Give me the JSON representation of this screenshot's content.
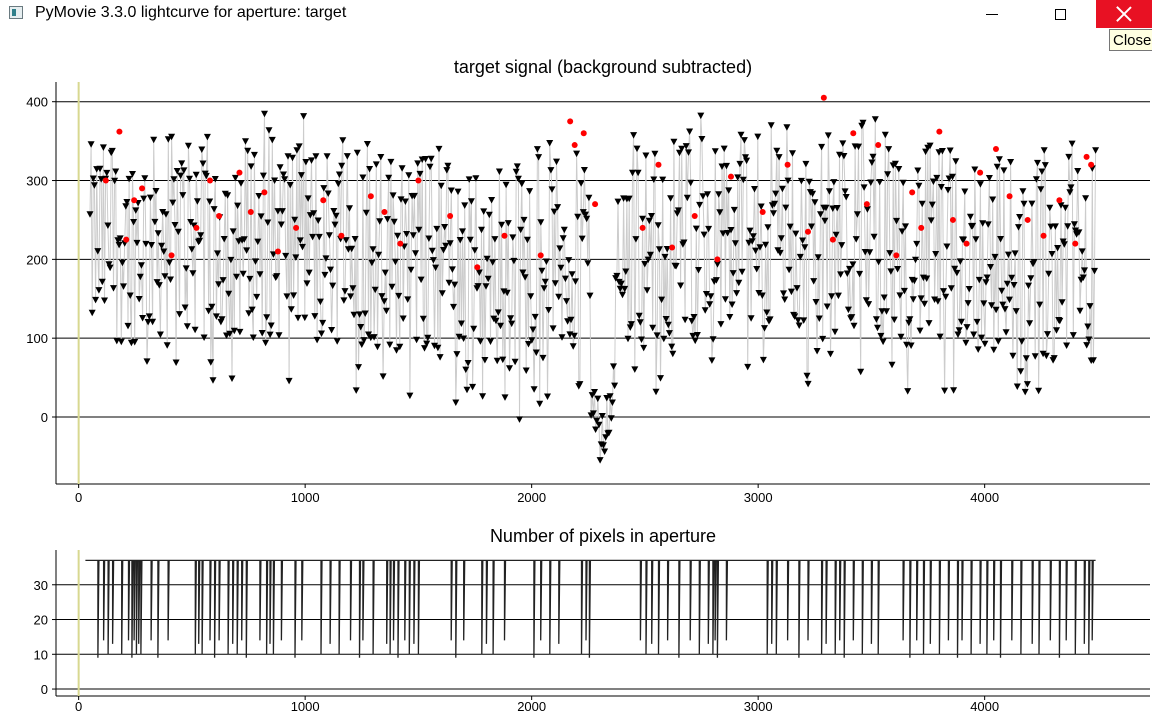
{
  "window": {
    "title": "PyMovie 3.3.0 lightcurve for aperture: target",
    "close_tooltip": "Close",
    "minimize_icon": "minimize-icon",
    "maximize_icon": "maximize-icon",
    "close_icon": "close-icon",
    "close_color": "#e81123"
  },
  "chart_data": [
    {
      "type": "scatter",
      "title": "target signal (background subtracted)",
      "xlabel": "",
      "ylabel": "",
      "xlim": [
        -100,
        4730
      ],
      "ylim": [
        -85,
        425
      ],
      "x_ticks": [
        0,
        1000,
        2000,
        3000,
        4000
      ],
      "y_ticks": [
        0,
        100,
        200,
        300,
        400
      ],
      "grid": "horizontal lines at y ticks",
      "colors": {
        "points": "#000000",
        "highlight": "#ff0000",
        "line": "#cccccc",
        "marker_line": "#d8d890"
      },
      "marker": "down-triangle (red dots for selected points)",
      "x_range": [
        50,
        4490
      ],
      "mean_level": 215,
      "dip": {
        "x_start": 2260,
        "x_end": 2370,
        "min_value": -75
      },
      "low_gap": {
        "x": 1930,
        "value": 0
      },
      "highlight_points": [
        [
          120,
          300
        ],
        [
          180,
          362
        ],
        [
          210,
          225
        ],
        [
          245,
          275
        ],
        [
          280,
          290
        ],
        [
          410,
          205
        ],
        [
          520,
          240
        ],
        [
          580,
          300
        ],
        [
          620,
          255
        ],
        [
          710,
          310
        ],
        [
          760,
          260
        ],
        [
          820,
          285
        ],
        [
          880,
          210
        ],
        [
          960,
          240
        ],
        [
          1080,
          275
        ],
        [
          1160,
          230
        ],
        [
          1290,
          280
        ],
        [
          1350,
          260
        ],
        [
          1420,
          220
        ],
        [
          1500,
          300
        ],
        [
          1640,
          255
        ],
        [
          1760,
          190
        ],
        [
          1880,
          230
        ],
        [
          2040,
          205
        ],
        [
          2170,
          375
        ],
        [
          2190,
          345
        ],
        [
          2230,
          360
        ],
        [
          2280,
          270
        ],
        [
          2490,
          240
        ],
        [
          2560,
          320
        ],
        [
          2620,
          215
        ],
        [
          2720,
          255
        ],
        [
          2820,
          200
        ],
        [
          2880,
          305
        ],
        [
          3020,
          260
        ],
        [
          3130,
          320
        ],
        [
          3220,
          235
        ],
        [
          3290,
          405
        ],
        [
          3330,
          225
        ],
        [
          3420,
          360
        ],
        [
          3480,
          270
        ],
        [
          3530,
          345
        ],
        [
          3610,
          205
        ],
        [
          3680,
          285
        ],
        [
          3720,
          240
        ],
        [
          3800,
          362
        ],
        [
          3860,
          250
        ],
        [
          3920,
          220
        ],
        [
          3980,
          310
        ],
        [
          4050,
          340
        ],
        [
          4110,
          280
        ],
        [
          4190,
          250
        ],
        [
          4260,
          230
        ],
        [
          4330,
          275
        ],
        [
          4400,
          220
        ],
        [
          4450,
          330
        ],
        [
          4470,
          320
        ]
      ]
    },
    {
      "type": "line",
      "title": "Number of pixels in aperture",
      "xlabel": "",
      "ylabel": "",
      "xlim": [
        -100,
        4730
      ],
      "ylim": [
        -2,
        40
      ],
      "x_ticks": [
        0,
        1000,
        2000,
        3000,
        4000
      ],
      "y_ticks": [
        0,
        10,
        20,
        30
      ],
      "grid": "horizontal lines at y ticks",
      "baseline_value": 37,
      "dropout_values": [
        9,
        13
      ],
      "x_range": [
        30,
        4490
      ],
      "dropout_x": [
        85,
        110,
        130,
        150,
        190,
        220,
        235,
        245,
        255,
        265,
        275,
        320,
        350,
        395,
        515,
        530,
        545,
        580,
        600,
        620,
        660,
        680,
        700,
        720,
        740,
        800,
        830,
        845,
        860,
        895,
        955,
        985,
        1070,
        1110,
        1150,
        1200,
        1240,
        1255,
        1300,
        1360,
        1375,
        1390,
        1410,
        1440,
        1460,
        1480,
        1500,
        1645,
        1665,
        1700,
        1780,
        1800,
        1830,
        1880,
        2010,
        2040,
        2080,
        2120,
        2220,
        2240,
        2255,
        2480,
        2505,
        2530,
        2560,
        2600,
        2650,
        2700,
        2740,
        2780,
        2800,
        2810,
        2820,
        2860,
        3040,
        3060,
        3080,
        3130,
        3180,
        3220,
        3280,
        3300,
        3340,
        3360,
        3380,
        3420,
        3460,
        3500,
        3530,
        3640,
        3670,
        3700,
        3730,
        3760,
        3800,
        3840,
        3880,
        3900,
        3940,
        3980,
        4010,
        4040,
        4070,
        4120,
        4160,
        4210,
        4240,
        4290,
        4330,
        4360,
        4400,
        4440,
        4460,
        4475
      ]
    }
  ]
}
